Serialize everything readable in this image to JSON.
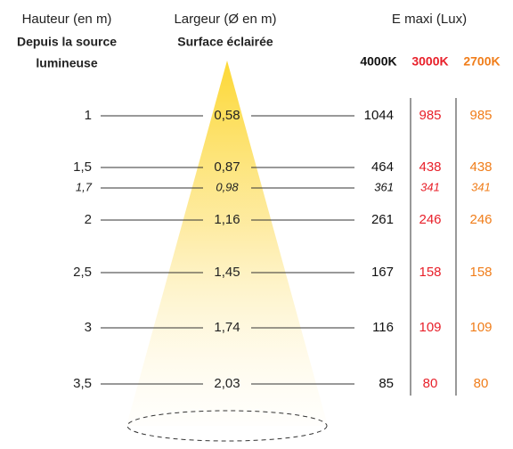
{
  "header": {
    "height_title": "Hauteur (en m)",
    "height_subtitle": [
      "Depuis la source",
      "lumineuse"
    ],
    "width_title": "Largeur (Ø en m)",
    "width_subtitle": "Surface éclairée",
    "lux_title": "E maxi (Lux)",
    "columns": [
      {
        "label": "4000K",
        "color": "#111111"
      },
      {
        "label": "3000K",
        "color": "#e8202a"
      },
      {
        "label": "2700K",
        "color": "#f07d1a"
      }
    ]
  },
  "rows": [
    {
      "height": "1",
      "width": "0,58",
      "lux": [
        "1044",
        "985",
        "985"
      ],
      "italic": false
    },
    {
      "height": "1,5",
      "width": "0,87",
      "lux": [
        "464",
        "438",
        "438"
      ],
      "italic": false
    },
    {
      "height": "1,7",
      "width": "0,98",
      "lux": [
        "361",
        "341",
        "341"
      ],
      "italic": true
    },
    {
      "height": "2",
      "width": "1,16",
      "lux": [
        "261",
        "246",
        "246"
      ],
      "italic": false
    },
    {
      "height": "2,5",
      "width": "1,45",
      "lux": [
        "167",
        "158",
        "158"
      ],
      "italic": false
    },
    {
      "height": "3",
      "width": "1,74",
      "lux": [
        "116",
        "109",
        "109"
      ],
      "italic": false
    },
    {
      "height": "3,5",
      "width": "2,03",
      "lux": [
        "85",
        "80",
        "80"
      ],
      "italic": false
    }
  ]
}
